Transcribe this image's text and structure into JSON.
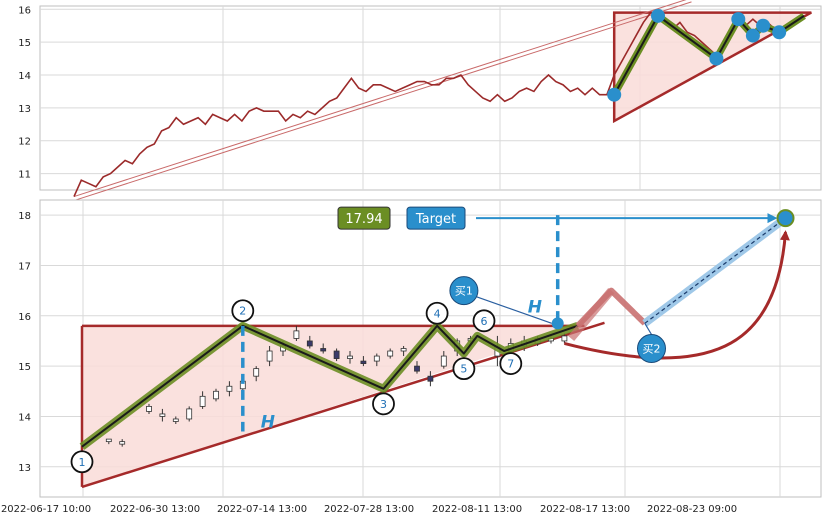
{
  "chart_data": [
    {
      "type": "line",
      "panel": "overview",
      "ylim": [
        10.5,
        16.1
      ],
      "yticks": [
        "11",
        "12",
        "13",
        "14",
        "15",
        "16"
      ],
      "grid": true,
      "colors": {
        "price": "#9b2a2a",
        "pattern": "#a52a2a",
        "fill": "#f9dcd8",
        "wave": "#6b8e23",
        "marker": "#2a8fcc"
      },
      "price": [
        [
          0,
          10.3
        ],
        [
          0.5,
          10.8
        ],
        [
          1,
          10.7
        ],
        [
          1.5,
          10.6
        ],
        [
          2,
          10.9
        ],
        [
          2.5,
          11
        ],
        [
          3,
          11.2
        ],
        [
          3.5,
          11.4
        ],
        [
          4,
          11.3
        ],
        [
          4.5,
          11.6
        ],
        [
          5,
          11.8
        ],
        [
          5.5,
          11.9
        ],
        [
          6,
          12.3
        ],
        [
          6.5,
          12.4
        ],
        [
          7,
          12.7
        ],
        [
          7.5,
          12.5
        ],
        [
          8,
          12.6
        ],
        [
          8.5,
          12.7
        ],
        [
          9,
          12.5
        ],
        [
          9.5,
          12.8
        ],
        [
          10,
          12.7
        ],
        [
          10.5,
          12.6
        ],
        [
          11,
          12.8
        ],
        [
          11.5,
          12.6
        ],
        [
          12,
          12.9
        ],
        [
          12.5,
          13
        ],
        [
          13,
          12.9
        ],
        [
          13.5,
          12.9
        ],
        [
          14,
          12.9
        ],
        [
          14.5,
          12.6
        ],
        [
          15,
          12.8
        ],
        [
          15.5,
          12.7
        ],
        [
          16,
          12.9
        ],
        [
          16.5,
          12.8
        ],
        [
          17,
          13
        ],
        [
          17.5,
          13.2
        ],
        [
          18,
          13.3
        ],
        [
          18.5,
          13.6
        ],
        [
          19,
          13.9
        ],
        [
          19.5,
          13.6
        ],
        [
          20,
          13.5
        ],
        [
          20.5,
          13.7
        ],
        [
          21,
          13.7
        ],
        [
          21.5,
          13.6
        ],
        [
          22,
          13.5
        ],
        [
          22.5,
          13.6
        ],
        [
          23,
          13.7
        ],
        [
          23.5,
          13.8
        ],
        [
          24,
          13.8
        ],
        [
          24.5,
          13.7
        ],
        [
          25,
          13.7
        ],
        [
          25.5,
          13.9
        ],
        [
          26,
          13.9
        ],
        [
          26.5,
          14
        ],
        [
          27,
          13.7
        ],
        [
          27.5,
          13.5
        ],
        [
          28,
          13.3
        ],
        [
          28.5,
          13.2
        ],
        [
          29,
          13.4
        ],
        [
          29.5,
          13.2
        ],
        [
          30,
          13.3
        ],
        [
          30.5,
          13.5
        ],
        [
          31,
          13.6
        ],
        [
          31.5,
          13.5
        ],
        [
          32,
          13.8
        ],
        [
          32.5,
          14
        ],
        [
          33,
          13.8
        ],
        [
          33.5,
          13.7
        ],
        [
          34,
          13.5
        ],
        [
          34.5,
          13.6
        ],
        [
          35,
          13.4
        ],
        [
          35.5,
          13.6
        ],
        [
          36,
          13.4
        ],
        [
          36.5,
          13.4
        ],
        [
          37,
          14
        ],
        [
          37.5,
          14.4
        ],
        [
          38,
          14.8
        ],
        [
          38.5,
          15.2
        ],
        [
          39,
          15.6
        ],
        [
          39.5,
          15.9
        ],
        [
          40,
          15.8
        ],
        [
          40.5,
          15.6
        ],
        [
          41,
          15.4
        ],
        [
          41.5,
          15.6
        ],
        [
          42,
          15.3
        ],
        [
          42.5,
          15.2
        ],
        [
          43,
          15
        ],
        [
          43.5,
          14.8
        ],
        [
          44,
          14.6
        ],
        [
          44.5,
          14.9
        ],
        [
          45,
          15.3
        ],
        [
          45.5,
          15.7
        ],
        [
          46,
          15.5
        ],
        [
          46.5,
          15.7
        ],
        [
          47,
          15.5
        ],
        [
          47.5,
          15.6
        ],
        [
          48,
          15.4
        ],
        [
          48.5,
          15.3
        ],
        [
          49,
          15.5
        ],
        [
          49.5,
          15.6
        ],
        [
          50,
          15.8
        ]
      ],
      "trend_channel": {
        "from": [
          0,
          10.3
        ],
        "to": [
          37.5,
          15.8
        ]
      },
      "triangle": {
        "top_left": [
          37,
          15.9
        ],
        "bottom_left": [
          37,
          12.6
        ],
        "top_right": [
          50.5,
          15.9
        ]
      },
      "wave": [
        [
          37,
          13.4
        ],
        [
          40,
          15.8
        ],
        [
          44,
          14.5
        ],
        [
          45.5,
          15.7
        ],
        [
          46.5,
          15.2
        ],
        [
          47.2,
          15.5
        ],
        [
          48.3,
          15.3
        ],
        [
          50,
          15.8
        ]
      ]
    },
    {
      "type": "candlestick",
      "panel": "pattern",
      "ylim": [
        12.4,
        18.3
      ],
      "yticks": [
        "13",
        "14",
        "15",
        "16",
        "17",
        "18"
      ],
      "xticks": [
        "2022-06-17 10:00",
        "2022-06-30 13:00",
        "2022-07-14 13:00",
        "2022-07-28 13:00",
        "2022-08-11 13:00",
        "2022-08-17 13:00",
        "2022-08-23 09:00"
      ],
      "grid": true,
      "colors": {
        "pattern": "#a52a2a",
        "fill": "#f9dcd8",
        "wave": "#6b8e23",
        "accent": "#2a8fcc",
        "projection": "#c97070",
        "target_path": "#9fc8e8"
      },
      "candles": [
        [
          2,
          13.5,
          13.55,
          13.45,
          13.55
        ],
        [
          3,
          13.45,
          13.55,
          13.4,
          13.5
        ],
        [
          5,
          14.1,
          14.25,
          14.05,
          14.2
        ],
        [
          6,
          14,
          14.15,
          13.9,
          14.05
        ],
        [
          7,
          13.9,
          14.0,
          13.85,
          13.95
        ],
        [
          8,
          13.95,
          14.2,
          13.9,
          14.15
        ],
        [
          9,
          14.2,
          14.5,
          14.15,
          14.4
        ],
        [
          10,
          14.35,
          14.55,
          14.3,
          14.5
        ],
        [
          11,
          14.5,
          14.7,
          14.4,
          14.6
        ],
        [
          12,
          14.55,
          14.75,
          14.5,
          14.7
        ],
        [
          13,
          14.8,
          15.0,
          14.7,
          14.95
        ],
        [
          14,
          15.1,
          15.4,
          15.0,
          15.3
        ],
        [
          15,
          15.3,
          15.5,
          15.2,
          15.4
        ],
        [
          16,
          15.55,
          15.8,
          15.5,
          15.7
        ],
        [
          17,
          15.5,
          15.6,
          15.35,
          15.4
        ],
        [
          18,
          15.35,
          15.45,
          15.25,
          15.3
        ],
        [
          19,
          15.3,
          15.35,
          15.1,
          15.15
        ],
        [
          20,
          15.15,
          15.3,
          15.05,
          15.2
        ],
        [
          21,
          15.1,
          15.2,
          15.0,
          15.05
        ],
        [
          22,
          15.1,
          15.25,
          15.0,
          15.2
        ],
        [
          23,
          15.2,
          15.35,
          15.15,
          15.3
        ],
        [
          24,
          15.3,
          15.4,
          15.2,
          15.35
        ],
        [
          25,
          15.0,
          15.1,
          14.85,
          14.9
        ],
        [
          26,
          14.8,
          14.9,
          14.6,
          14.7
        ],
        [
          27,
          15.0,
          15.3,
          14.95,
          15.2
        ],
        [
          28,
          15.3,
          15.55,
          15.2,
          15.5
        ],
        [
          29,
          15.5,
          15.6,
          15.4,
          15.55
        ],
        [
          31,
          15.2,
          15.6,
          15.0,
          15.4
        ],
        [
          32,
          15.3,
          15.55,
          15.2,
          15.45
        ],
        [
          33,
          15.4,
          15.6,
          15.3,
          15.5
        ],
        [
          34,
          15.45,
          15.6,
          15.4,
          15.55
        ],
        [
          35,
          15.5,
          15.6,
          15.45,
          15.55
        ],
        [
          36,
          15.5,
          15.65,
          15.45,
          15.6
        ]
      ],
      "triangle": {
        "top_left": [
          0,
          15.8
        ],
        "bottom_left": [
          0,
          12.6
        ],
        "top_right": [
          37.5,
          15.8
        ],
        "apex": [
          37.5,
          15.9
        ]
      },
      "wave": [
        [
          0,
          13.4
        ],
        [
          12,
          15.8
        ],
        [
          22.5,
          14.55
        ],
        [
          26.5,
          15.8
        ],
        [
          28.5,
          15.25
        ],
        [
          29.5,
          15.6
        ],
        [
          31.5,
          15.3
        ],
        [
          37,
          15.8
        ]
      ],
      "points": [
        {
          "label": "1",
          "x": 0,
          "y": 13.1
        },
        {
          "label": "2",
          "x": 12,
          "y": 16.1
        },
        {
          "label": "3",
          "x": 22.5,
          "y": 14.25
        },
        {
          "label": "4",
          "x": 26.5,
          "y": 16.05
        },
        {
          "label": "5",
          "x": 28.5,
          "y": 14.95
        },
        {
          "label": "6",
          "x": 30,
          "y": 15.9
        },
        {
          "label": "7",
          "x": 32,
          "y": 15.05
        }
      ],
      "height_marker": {
        "label": "H",
        "x": 12,
        "y_top": 15.8,
        "y_bottom": 13.7
      },
      "height_marker2": {
        "label": "H",
        "x": 35.5,
        "y_top": 18.0,
        "y_bottom": 15.75
      },
      "buy1": {
        "label": "买1",
        "x": 28.5,
        "y": 16.5,
        "target_x": 35.5,
        "target_y": 15.85
      },
      "buy2": {
        "label": "买2",
        "x": 42.5,
        "y": 15.35
      },
      "projection": [
        [
          37,
          15.8
        ],
        [
          39.5,
          16.5
        ],
        [
          42,
          15.85
        ]
      ],
      "target": {
        "label": "Target",
        "value": "17.94",
        "x": 52.5,
        "y": 17.94
      }
    }
  ]
}
